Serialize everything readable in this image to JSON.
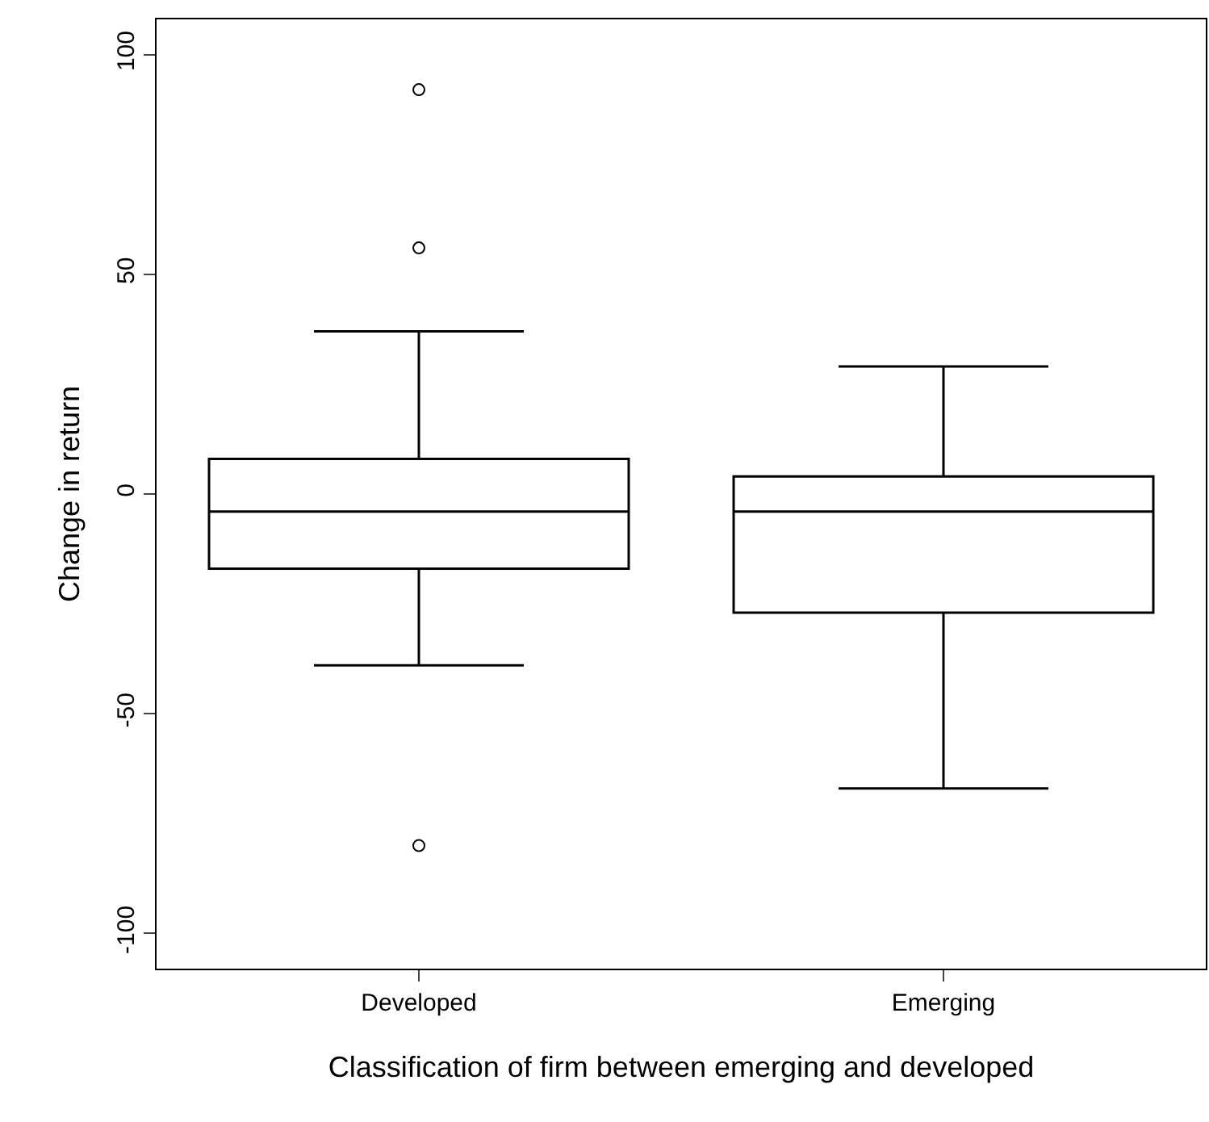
{
  "chart_data": {
    "type": "box",
    "xlabel": "Classification of firm between emerging and developed",
    "ylabel": "Change in return",
    "categories": [
      "Developed",
      "Emerging"
    ],
    "boxes": [
      {
        "low": -39,
        "q1": -17,
        "median": -4,
        "q3": 8,
        "high": 37,
        "outliers": [
          92,
          56,
          -80
        ]
      },
      {
        "low": -67,
        "q1": -27,
        "median": -4,
        "q3": 4,
        "high": 29
      }
    ],
    "color": "#000000",
    "ylim": [
      -108,
      108
    ],
    "yticks": [
      -100,
      -50,
      0,
      50,
      100
    ],
    "marker": "circle"
  }
}
